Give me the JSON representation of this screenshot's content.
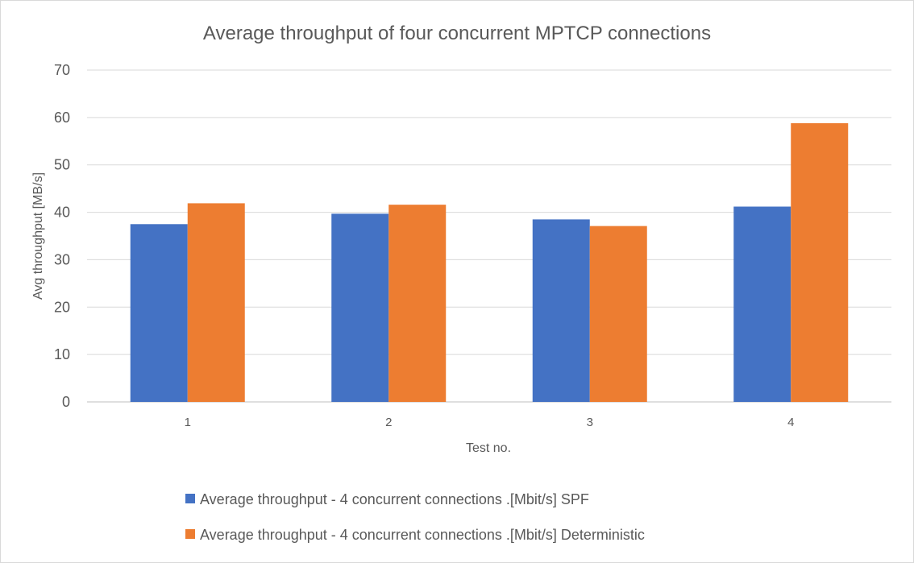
{
  "chart_data": {
    "type": "bar",
    "title": "Average throughput of four concurrent MPTCP connections",
    "xlabel": "Test no.",
    "ylabel": "Avg throughput [MB/s]",
    "categories": [
      "1",
      "2",
      "3",
      "4"
    ],
    "ylim": [
      0,
      70
    ],
    "yticks": [
      "0",
      "10",
      "20",
      "30",
      "40",
      "50",
      "60",
      "70"
    ],
    "grid": true,
    "legend_position": "bottom",
    "series": [
      {
        "name": "Average throughput  - 4 concurrent connections .[Mbit/s] SPF",
        "values": [
          37.5,
          39.7,
          38.5,
          41.2
        ],
        "color": "#4472c4"
      },
      {
        "name": "Average throughput  - 4 concurrent connections .[Mbit/s] Deterministic",
        "values": [
          41.9,
          41.6,
          37.1,
          58.8
        ],
        "color": "#ed7d31"
      }
    ]
  }
}
